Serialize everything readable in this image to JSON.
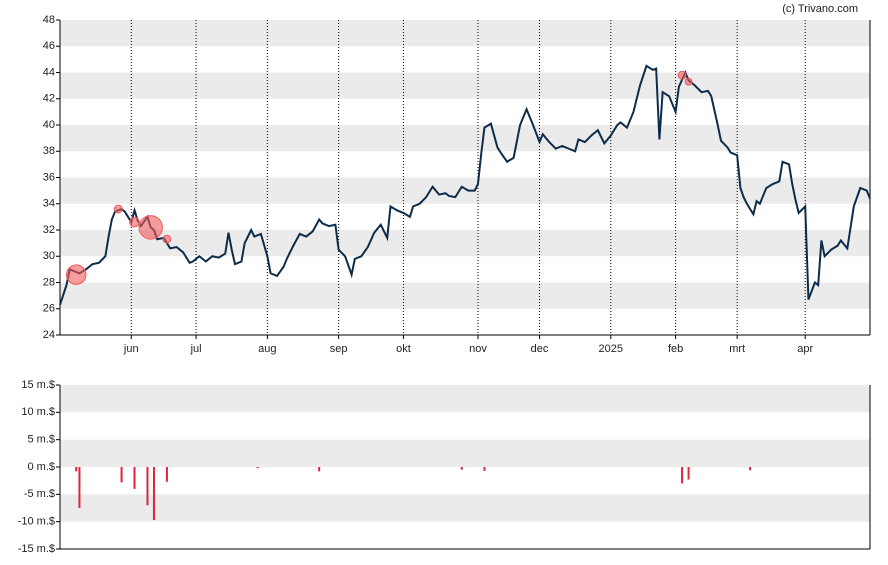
{
  "credit": "(c) Trivano.com",
  "chart_data": [
    {
      "type": "line",
      "color": "#0d2c4a",
      "x": [
        0,
        2,
        3,
        5,
        6,
        8,
        10,
        12,
        14,
        15,
        16,
        17,
        19,
        20,
        22,
        23,
        24,
        25,
        27,
        28,
        29,
        30,
        32,
        34,
        36,
        38,
        40,
        41,
        43,
        45,
        47,
        49,
        51,
        52,
        53,
        54,
        56,
        57,
        59,
        60,
        62,
        64,
        65,
        67,
        69,
        70,
        72,
        74,
        76,
        78,
        80,
        81,
        83,
        85,
        86,
        88,
        90,
        91,
        93,
        95,
        97,
        99,
        101,
        102,
        104,
        106,
        108,
        109,
        111,
        113,
        115,
        117,
        119,
        120,
        122,
        124,
        126,
        128,
        129,
        130,
        131,
        133,
        135,
        136,
        138,
        140,
        142,
        144,
        146,
        148,
        149,
        151,
        153,
        155,
        157,
        159,
        160,
        162,
        164,
        166,
        168,
        170,
        172,
        173,
        175,
        177,
        179,
        181,
        183,
        184,
        185,
        186,
        188,
        190,
        191,
        193,
        194,
        196,
        198,
        200,
        201,
        203,
        204,
        206,
        207,
        209,
        210,
        211,
        212,
        214,
        215,
        216,
        218,
        220,
        222,
        223,
        225,
        226,
        227,
        228,
        230,
        231,
        233,
        234,
        235,
        236,
        238,
        240,
        241,
        243,
        245,
        247,
        249,
        250
      ],
      "values": [
        26.3,
        27.8,
        29.0,
        28.8,
        28.7,
        29.0,
        29.4,
        29.5,
        30.0,
        31.5,
        32.8,
        33.4,
        33.6,
        33.4,
        32.6,
        33.5,
        32.7,
        32.3,
        33.0,
        32.2,
        32.0,
        31.3,
        31.4,
        30.6,
        30.7,
        30.3,
        29.5,
        29.6,
        30.0,
        29.6,
        30.0,
        29.9,
        30.2,
        31.8,
        30.5,
        29.4,
        29.6,
        31.0,
        32.0,
        31.5,
        31.7,
        30.0,
        28.7,
        28.5,
        29.2,
        29.8,
        30.8,
        31.7,
        31.5,
        31.9,
        32.8,
        32.5,
        32.3,
        32.4,
        30.5,
        30.0,
        28.6,
        29.8,
        30.0,
        30.7,
        31.8,
        32.4,
        31.4,
        33.8,
        33.5,
        33.3,
        33.0,
        33.8,
        34.0,
        34.5,
        35.3,
        34.7,
        34.8,
        34.6,
        34.5,
        35.3,
        35.0,
        35.0,
        35.5,
        37.8,
        39.8,
        40.1,
        38.3,
        37.9,
        37.2,
        37.5,
        40.0,
        41.2,
        40.0,
        38.7,
        39.3,
        38.7,
        38.2,
        38.4,
        38.2,
        38.0,
        38.9,
        38.7,
        39.2,
        39.6,
        38.6,
        39.2,
        40.0,
        40.2,
        39.8,
        41.0,
        43.0,
        44.5,
        44.2,
        44.3,
        38.9,
        42.5,
        42.2,
        41.0,
        42.9,
        44.0,
        43.4,
        43.0,
        42.5,
        42.6,
        42.2,
        40.0,
        38.8,
        38.3,
        37.9,
        37.7,
        35.2,
        34.5,
        34.0,
        33.2,
        34.2,
        34.0,
        35.2,
        35.5,
        35.7,
        37.2,
        37.0,
        35.5,
        34.3,
        33.3,
        33.8,
        26.7,
        28.0,
        27.8,
        31.2,
        30.0,
        30.5,
        30.8,
        31.2,
        30.6,
        33.8,
        35.2,
        35.0,
        34.4
      ],
      "markers": {
        "color": "#f05a5a",
        "x": [
          5,
          18,
          23,
          28,
          33,
          192,
          194
        ],
        "values": [
          28.6,
          33.6,
          32.6,
          32.2,
          31.3,
          43.8,
          43.3
        ],
        "sizes": [
          7.5,
          1.0,
          2.0,
          9.7,
          1.0,
          1.0,
          0.5
        ]
      },
      "xlim": [
        0,
        250
      ],
      "xticks": [
        {
          "value": 22,
          "label": "jun"
        },
        {
          "value": 42,
          "label": "jul"
        },
        {
          "value": 64,
          "label": "aug"
        },
        {
          "value": 86,
          "label": "sep"
        },
        {
          "value": 106,
          "label": "okt"
        },
        {
          "value": 129,
          "label": "nov"
        },
        {
          "value": 148,
          "label": "dec"
        },
        {
          "value": 170,
          "label": "2025"
        },
        {
          "value": 190,
          "label": "feb"
        },
        {
          "value": 209,
          "label": "mrt"
        },
        {
          "value": 230,
          "label": "apr"
        }
      ],
      "ylim": [
        24,
        48
      ],
      "yticks": [
        24,
        26,
        28,
        30,
        32,
        34,
        36,
        38,
        40,
        42,
        44,
        46,
        48
      ],
      "grid": true
    },
    {
      "type": "bar",
      "color": "#e0243c",
      "x": [
        5,
        6,
        19,
        23,
        27,
        29,
        33,
        61,
        80,
        124,
        131,
        192,
        194,
        213
      ],
      "values": [
        -0.8,
        -7.5,
        -2.8,
        -4.0,
        -7.0,
        -9.7,
        -2.7,
        -0.2,
        -0.8,
        -0.5,
        -0.7,
        -3.0,
        -2.3,
        -0.6
      ],
      "xlim": [
        0,
        250
      ],
      "ylim": [
        -15,
        15
      ],
      "yticks": [
        {
          "value": -15,
          "label": "-15 m.$"
        },
        {
          "value": -10,
          "label": "-10 m.$"
        },
        {
          "value": -5,
          "label": "-5 m.$"
        },
        {
          "value": 0,
          "label": "0 m.$"
        },
        {
          "value": 5,
          "label": "5 m.$"
        },
        {
          "value": 10,
          "label": "10 m.$"
        },
        {
          "value": 15,
          "label": "15 m.$"
        }
      ]
    }
  ]
}
